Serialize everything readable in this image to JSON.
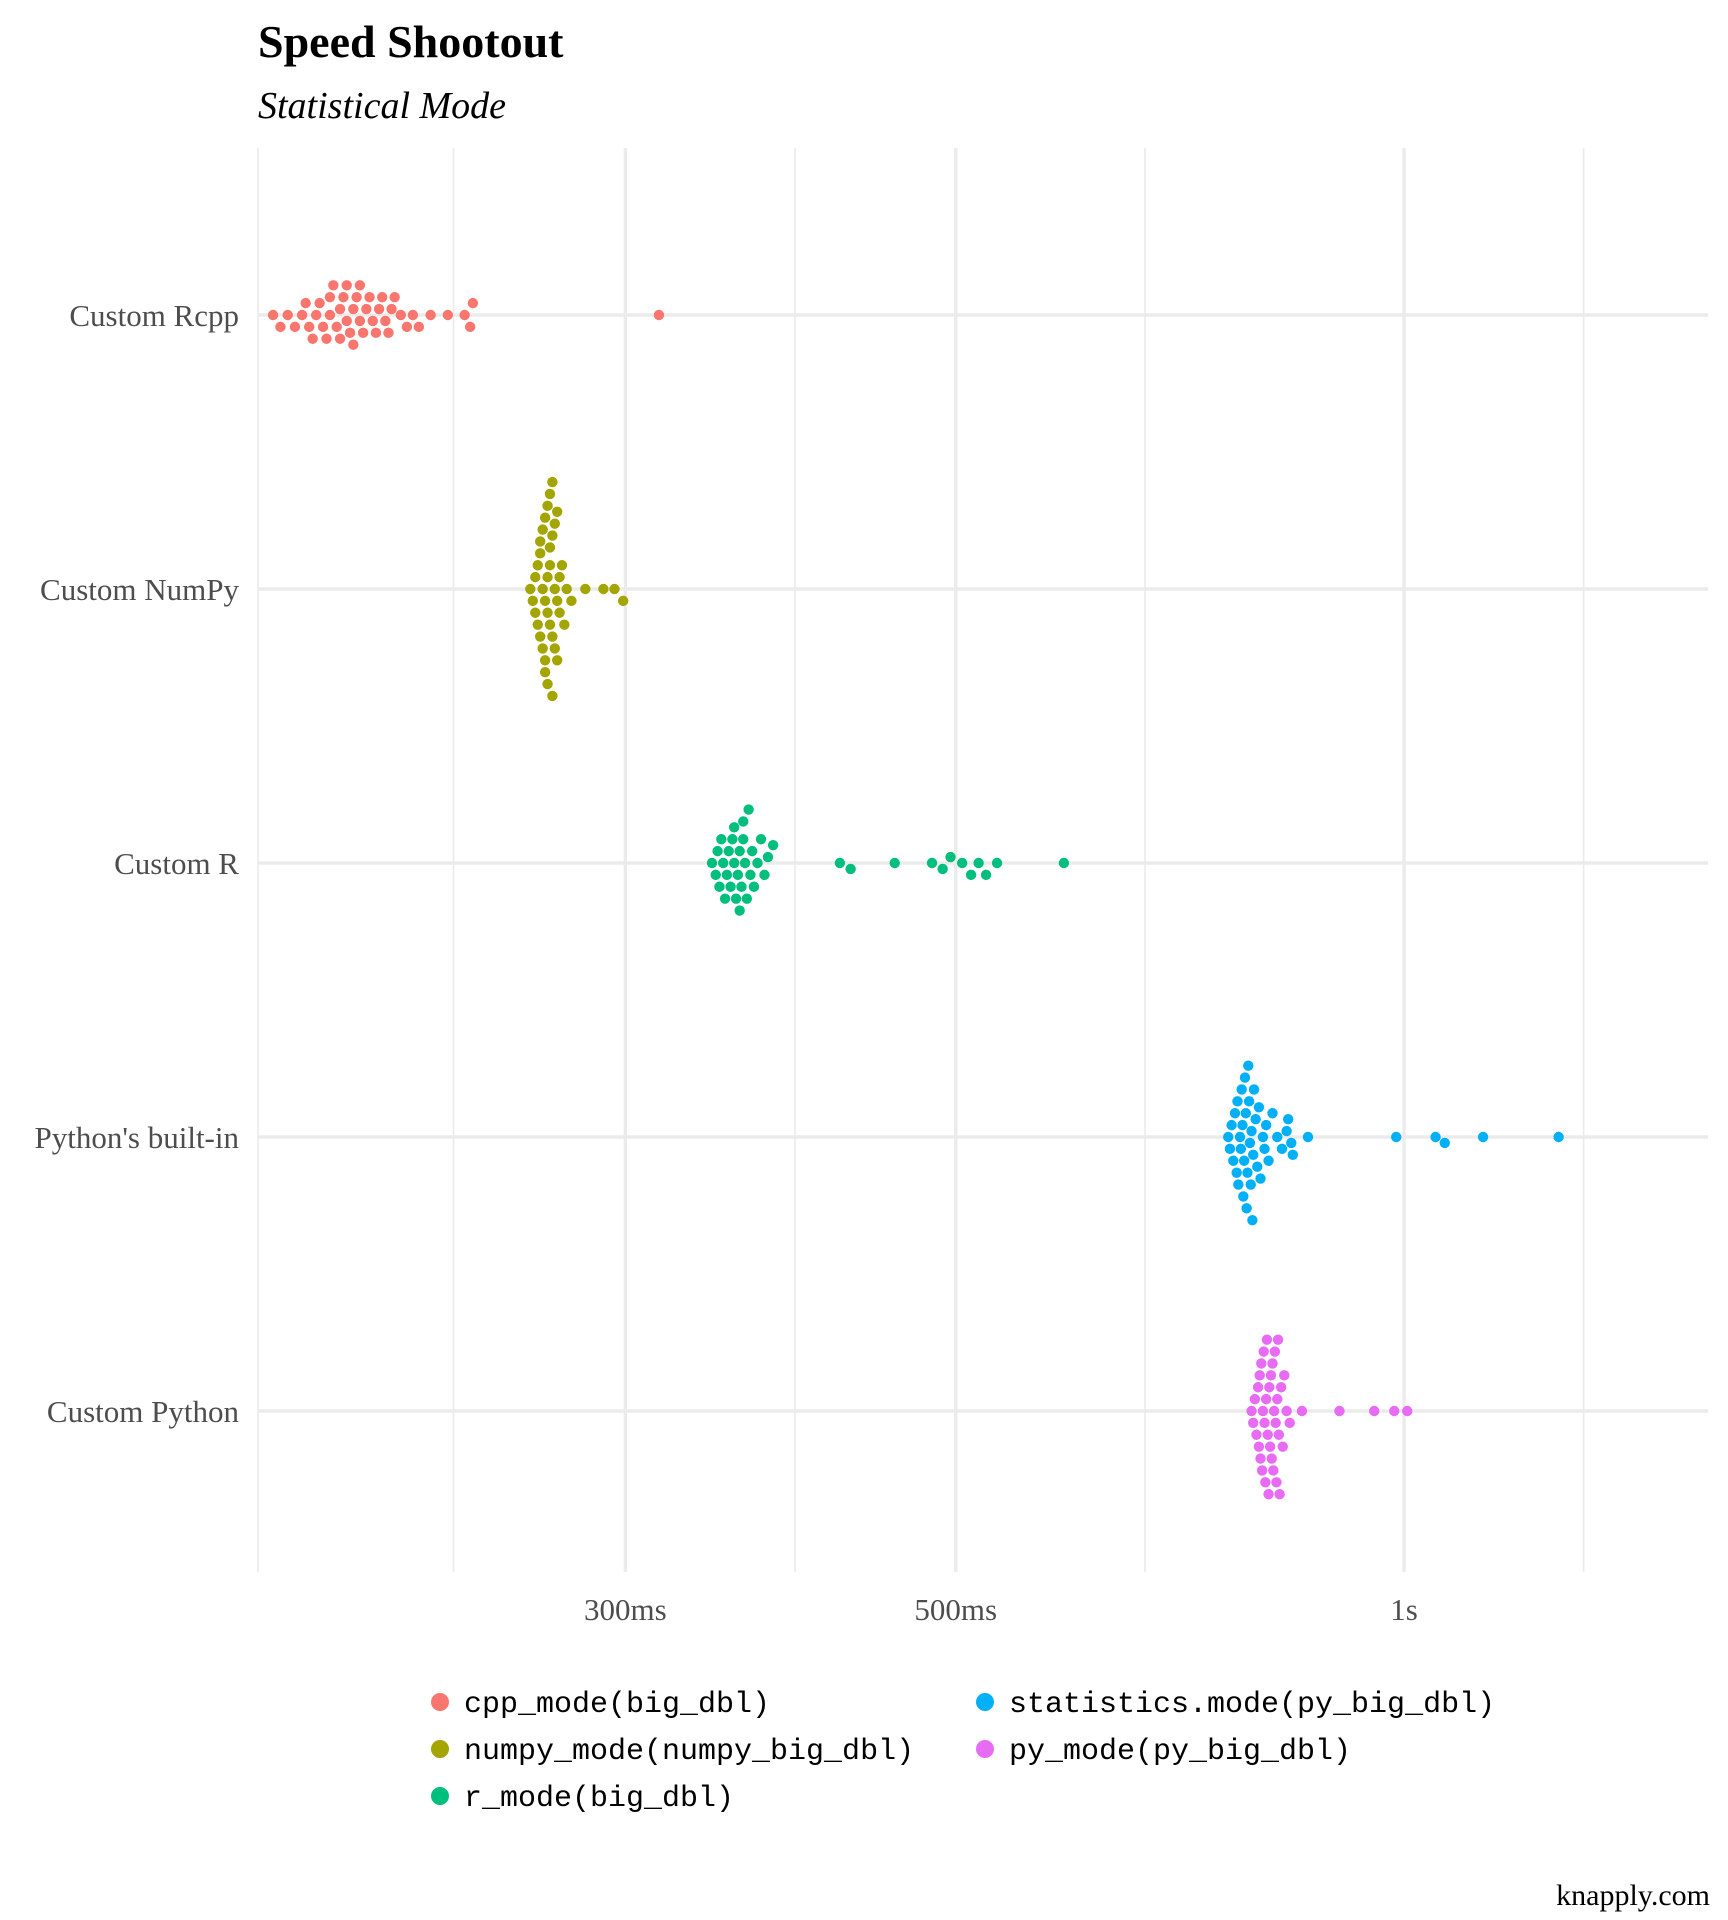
{
  "chart_data": {
    "type": "scatter",
    "subtype": "beeswarm",
    "title": "Speed Shootout",
    "subtitle": "Statistical Mode",
    "caption": "knapply.com",
    "x_scale": "log10",
    "x_unit": "seconds",
    "xlim": [
      0.17,
      1.6
    ],
    "x_ticks": [
      {
        "value": 0.3,
        "label": "300ms"
      },
      {
        "value": 0.5,
        "label": "500ms"
      },
      {
        "value": 1.0,
        "label": "1s"
      }
    ],
    "x_minor_ticks": [
      0.17,
      0.23,
      0.39,
      0.67,
      1.32
    ],
    "grid": true,
    "legend_position": "bottom",
    "categories": [
      "Custom Rcpp",
      "Custom NumPy",
      "Custom R",
      "Python's built-in",
      "Custom Python"
    ],
    "series": [
      {
        "name": "cpp_mode(big_dbl)",
        "category": "Custom Rcpp",
        "color": "#F8766D",
        "values": [
          0.174,
          0.176,
          0.178,
          0.18,
          0.182,
          0.183,
          0.184,
          0.185,
          0.186,
          0.187,
          0.188,
          0.189,
          0.19,
          0.19,
          0.191,
          0.192,
          0.193,
          0.193,
          0.194,
          0.195,
          0.195,
          0.196,
          0.197,
          0.197,
          0.198,
          0.199,
          0.199,
          0.2,
          0.201,
          0.202,
          0.203,
          0.204,
          0.205,
          0.206,
          0.207,
          0.208,
          0.209,
          0.21,
          0.212,
          0.214,
          0.216,
          0.218,
          0.222,
          0.228,
          0.234,
          0.236,
          0.237,
          0.316
        ]
      },
      {
        "name": "numpy_mode(numpy_big_dbl)",
        "category": "Custom NumPy",
        "color": "#A3A500",
        "values": [
          0.259,
          0.26,
          0.261,
          0.261,
          0.262,
          0.262,
          0.263,
          0.263,
          0.263,
          0.264,
          0.264,
          0.264,
          0.265,
          0.265,
          0.265,
          0.265,
          0.266,
          0.266,
          0.266,
          0.266,
          0.267,
          0.267,
          0.267,
          0.267,
          0.268,
          0.268,
          0.268,
          0.268,
          0.269,
          0.269,
          0.269,
          0.27,
          0.27,
          0.27,
          0.271,
          0.271,
          0.272,
          0.273,
          0.274,
          0.276,
          0.282,
          0.29,
          0.295,
          0.299
        ]
      },
      {
        "name": "r_mode(big_dbl)",
        "category": "Custom R",
        "color": "#00BF7D",
        "values": [
          0.343,
          0.345,
          0.346,
          0.347,
          0.348,
          0.349,
          0.35,
          0.351,
          0.352,
          0.353,
          0.354,
          0.355,
          0.355,
          0.356,
          0.357,
          0.358,
          0.358,
          0.359,
          0.36,
          0.36,
          0.361,
          0.362,
          0.363,
          0.364,
          0.365,
          0.366,
          0.368,
          0.37,
          0.372,
          0.374,
          0.377,
          0.418,
          0.425,
          0.455,
          0.482,
          0.49,
          0.496,
          0.505,
          0.512,
          0.518,
          0.524,
          0.533,
          0.591
        ]
      },
      {
        "name": "statistics.mode(py_big_dbl)",
        "category": "Python's built-in",
        "color": "#00B0F6",
        "values": [
          0.762,
          0.764,
          0.766,
          0.768,
          0.77,
          0.772,
          0.773,
          0.774,
          0.776,
          0.777,
          0.778,
          0.779,
          0.78,
          0.781,
          0.782,
          0.783,
          0.784,
          0.785,
          0.786,
          0.787,
          0.788,
          0.789,
          0.79,
          0.791,
          0.792,
          0.793,
          0.795,
          0.797,
          0.799,
          0.801,
          0.804,
          0.806,
          0.808,
          0.811,
          0.816,
          0.822,
          0.828,
          0.834,
          0.836,
          0.84,
          0.842,
          0.862,
          0.988,
          1.05,
          1.065,
          1.13,
          1.27
        ]
      },
      {
        "name": "py_mode(py_big_dbl)",
        "category": "Custom Python",
        "color": "#E76BF3",
        "values": [
          0.79,
          0.792,
          0.794,
          0.796,
          0.798,
          0.799,
          0.8,
          0.801,
          0.802,
          0.803,
          0.804,
          0.805,
          0.806,
          0.807,
          0.808,
          0.809,
          0.81,
          0.811,
          0.812,
          0.813,
          0.814,
          0.815,
          0.816,
          0.817,
          0.818,
          0.819,
          0.82,
          0.821,
          0.822,
          0.823,
          0.824,
          0.825,
          0.827,
          0.829,
          0.831,
          0.834,
          0.838,
          0.854,
          0.905,
          0.955,
          0.985,
          1.005
        ]
      }
    ],
    "legend": [
      {
        "label": "cpp_mode(big_dbl)",
        "color": "#F8766D"
      },
      {
        "label": "numpy_mode(numpy_big_dbl)",
        "color": "#A3A500"
      },
      {
        "label": "r_mode(big_dbl)",
        "color": "#00BF7D"
      },
      {
        "label": "statistics.mode(py_big_dbl)",
        "color": "#00B0F6"
      },
      {
        "label": "py_mode(py_big_dbl)",
        "color": "#E76BF3"
      }
    ]
  }
}
